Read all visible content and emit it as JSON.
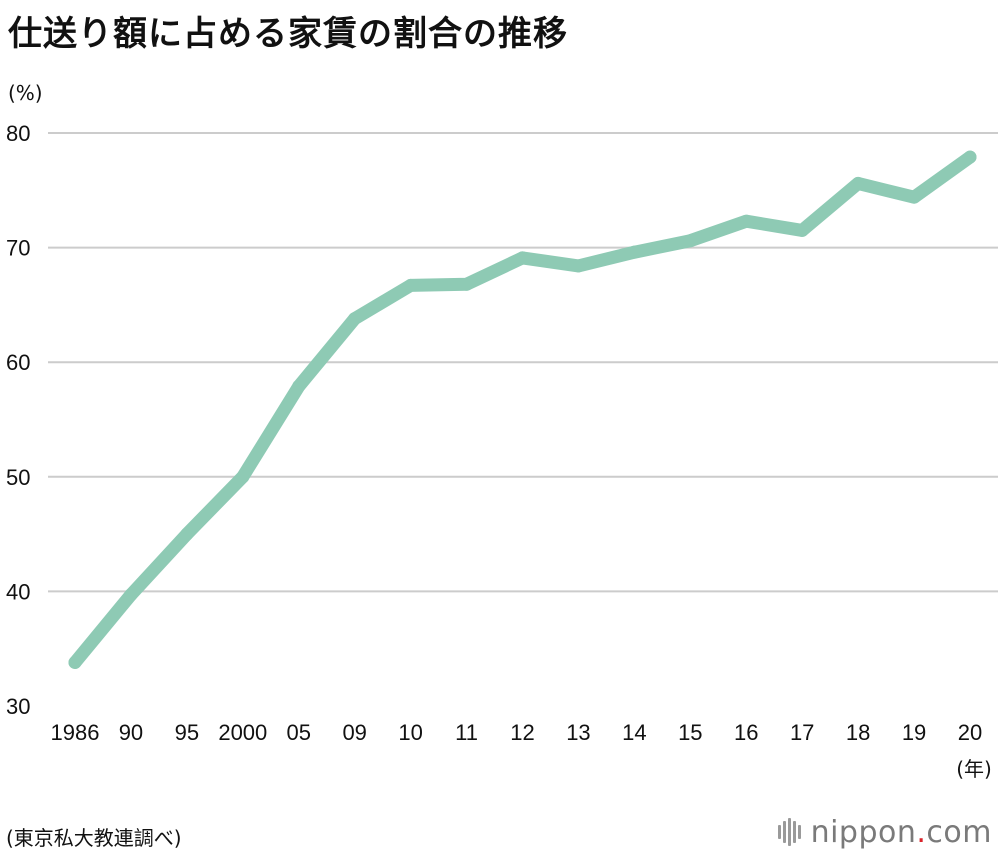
{
  "chart_data": {
    "type": "line",
    "title": "仕送り額に占める家賃の割合の推移",
    "y_unit": "(%)",
    "x_unit": "(年)",
    "categories": [
      "1986",
      "90",
      "95",
      "2000",
      "05",
      "09",
      "10",
      "11",
      "12",
      "13",
      "14",
      "15",
      "16",
      "17",
      "18",
      "19",
      "20"
    ],
    "series": [
      {
        "values": [
          33.8,
          39.7,
          45.0,
          50.0,
          57.9,
          63.8,
          66.7,
          66.8,
          69.1,
          68.4,
          69.6,
          70.6,
          72.3,
          71.5,
          75.6,
          74.4,
          77.9
        ]
      }
    ],
    "ylim": [
      30,
      80
    ],
    "yticks": [
      30,
      40,
      50,
      60,
      70,
      80
    ],
    "grid": true,
    "line_color": "#8ecab4",
    "grid_color": "#cccccc"
  },
  "source": "(東京私大教連調べ)",
  "logo": {
    "name": "nippon",
    "dot": ".",
    "suffix": "com"
  }
}
